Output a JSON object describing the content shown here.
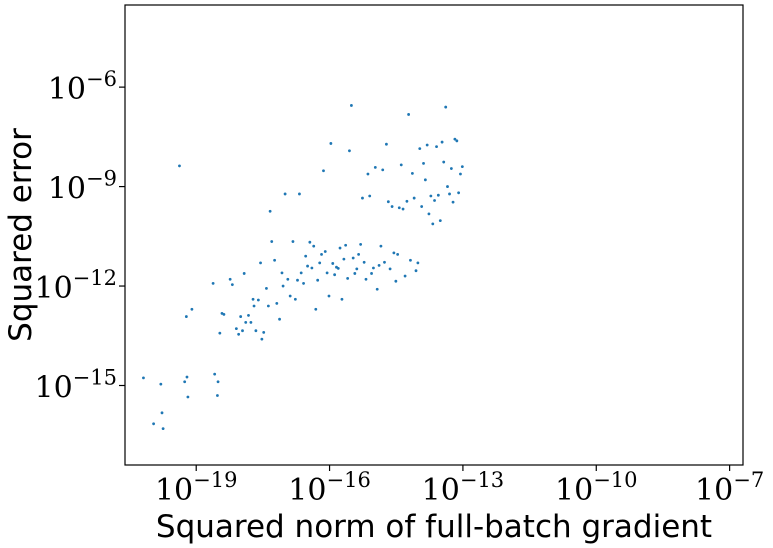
{
  "chart_data": {
    "type": "scatter",
    "title": "",
    "xlabel": "Squared norm of full-batch gradient",
    "ylabel": "Squared error",
    "x_scale": "log",
    "y_scale": "log",
    "xlim": [
      2.5e-21,
      2e-07
    ],
    "ylim": [
      4e-18,
      0.0003
    ],
    "x_ticks": [
      {
        "value": 1e-19,
        "base": "10",
        "exp": "−19"
      },
      {
        "value": 1e-16,
        "base": "10",
        "exp": "−16"
      },
      {
        "value": 1e-13,
        "base": "10",
        "exp": "−13"
      },
      {
        "value": 1e-10,
        "base": "10",
        "exp": "−10"
      },
      {
        "value": 1e-07,
        "base": "10",
        "exp": "−7"
      }
    ],
    "y_ticks": [
      {
        "value": 1e-15,
        "base": "10",
        "exp": "−15"
      },
      {
        "value": 1e-12,
        "base": "10",
        "exp": "−12"
      },
      {
        "value": 1e-09,
        "base": "10",
        "exp": "−9"
      },
      {
        "value": 1e-06,
        "base": "10",
        "exp": "−6"
      }
    ],
    "grid": false,
    "marker_color": "#1f77b4",
    "series": [
      {
        "points": [
          [
            6.5e-21,
            1.7e-15
          ],
          [
            1.1e-20,
            7e-17
          ],
          [
            1.6e-20,
            1.1e-15
          ],
          [
            1.8e-20,
            5e-17
          ],
          [
            1.7e-20,
            1.5e-16
          ],
          [
            4.2e-20,
            4.2e-09
          ],
          [
            6e-20,
            1.2e-13
          ],
          [
            8e-20,
            2e-13
          ],
          [
            5.5e-20,
            1.3e-15
          ],
          [
            6.2e-20,
            1.8e-15
          ],
          [
            6.5e-20,
            4.5e-16
          ],
          [
            2.4e-19,
            1.2e-12
          ],
          [
            2.6e-19,
            2.2e-15
          ],
          [
            3e-19,
            5e-16
          ],
          [
            3.1e-19,
            1.3e-15
          ],
          [
            3.4e-19,
            3.8e-14
          ],
          [
            3.8e-19,
            1.5e-13
          ],
          [
            4.2e-19,
            1.4e-13
          ],
          [
            5.8e-19,
            1.6e-12
          ],
          [
            6.5e-19,
            1.1e-12
          ],
          [
            8e-19,
            5.2e-14
          ],
          [
            9e-19,
            3.5e-14
          ],
          [
            1e-18,
            1.2e-13
          ],
          [
            1.1e-18,
            4.5e-14
          ],
          [
            1.3e-18,
            8e-14
          ],
          [
            1.2e-18,
            2.4e-12
          ],
          [
            1.5e-18,
            1.3e-13
          ],
          [
            1.7e-18,
            8e-14
          ],
          [
            1.9e-18,
            4e-13
          ],
          [
            2e-18,
            2.5e-13
          ],
          [
            2.2e-18,
            4.5e-14
          ],
          [
            2.5e-18,
            3.8e-13
          ],
          [
            2.8e-18,
            5e-12
          ],
          [
            3e-18,
            2.5e-14
          ],
          [
            3.3e-18,
            4e-14
          ],
          [
            3.8e-18,
            8.5e-13
          ],
          [
            4.2e-18,
            2.5e-13
          ],
          [
            4.6e-18,
            1.8e-10
          ],
          [
            5e-18,
            2.2e-11
          ],
          [
            5.8e-18,
            6e-12
          ],
          [
            6.5e-18,
            3e-13
          ],
          [
            7.5e-18,
            1e-13
          ],
          [
            8.5e-18,
            2.5e-12
          ],
          [
            9e-18,
            1e-12
          ],
          [
            1e-17,
            6e-10
          ],
          [
            1.15e-17,
            1.6e-12
          ],
          [
            1.3e-17,
            5e-13
          ],
          [
            1.5e-17,
            2.2e-11
          ],
          [
            1.7e-17,
            4e-13
          ],
          [
            1.9e-17,
            1.5e-12
          ],
          [
            2.1e-17,
            6e-10
          ],
          [
            2.3e-17,
            2.5e-12
          ],
          [
            2.6e-17,
            1.2e-12
          ],
          [
            2.9e-17,
            8e-12
          ],
          [
            3.2e-17,
            4e-12
          ],
          [
            3.6e-17,
            2.1e-11
          ],
          [
            4e-17,
            3.5e-12
          ],
          [
            4.4e-17,
            1.6e-11
          ],
          [
            4.9e-17,
            2e-13
          ],
          [
            5.4e-17,
            1.5e-12
          ],
          [
            6e-17,
            5e-12
          ],
          [
            6.6e-17,
            9e-12
          ],
          [
            7.3e-17,
            3e-09
          ],
          [
            8e-17,
            1.1e-11
          ],
          [
            8.8e-17,
            2.5e-12
          ],
          [
            9.7e-17,
            5e-13
          ],
          [
            1.07e-16,
            2e-08
          ],
          [
            1.18e-16,
            4.8e-12
          ],
          [
            1.3e-16,
            2.2e-12
          ],
          [
            1.43e-16,
            3.7e-12
          ],
          [
            1.57e-16,
            3.4e-12
          ],
          [
            1.72e-16,
            1.4e-11
          ],
          [
            1.9e-16,
            4e-13
          ],
          [
            2.1e-16,
            6.5e-12
          ],
          [
            2.3e-16,
            1.7e-11
          ],
          [
            2.55e-16,
            1.7e-12
          ],
          [
            2.8e-16,
            1.2e-08
          ],
          [
            3.1e-16,
            2.8e-07
          ],
          [
            3.4e-16,
            7e-12
          ],
          [
            3.7e-16,
            2.4e-12
          ],
          [
            4.1e-16,
            3.3e-12
          ],
          [
            4.5e-16,
            9e-12
          ],
          [
            5e-16,
            1.8e-11
          ],
          [
            5.5e-16,
            4.5e-10
          ],
          [
            6e-16,
            5.2e-12
          ],
          [
            6.6e-16,
            1.6e-12
          ],
          [
            7.3e-16,
            2.4e-09
          ],
          [
            8e-16,
            5.2e-10
          ],
          [
            8.8e-16,
            2.4e-12
          ],
          [
            9.7e-16,
            3.5e-12
          ],
          [
            1.07e-15,
            3.8e-09
          ],
          [
            1.18e-15,
            8e-13
          ],
          [
            1.3e-15,
            4.2e-12
          ],
          [
            1.43e-15,
            1.6e-11
          ],
          [
            1.57e-15,
            3.2e-09
          ],
          [
            1.72e-15,
            5.2e-12
          ],
          [
            1.9e-15,
            1.9e-08
          ],
          [
            2.1e-15,
            3.5e-10
          ],
          [
            2.3e-15,
            3.3e-12
          ],
          [
            2.55e-15,
            2.5e-10
          ],
          [
            2.8e-15,
            1e-11
          ],
          [
            3.1e-15,
            1.4e-12
          ],
          [
            3.4e-15,
            9e-12
          ],
          [
            3.7e-15,
            2.3e-10
          ],
          [
            4.1e-15,
            4.5e-09
          ],
          [
            4.5e-15,
            2.1e-10
          ],
          [
            5e-15,
            2e-12
          ],
          [
            5.5e-15,
            3.6e-10
          ],
          [
            6e-15,
            1.5e-07
          ],
          [
            6.6e-15,
            6e-12
          ],
          [
            7.3e-15,
            2.5e-09
          ],
          [
            8e-15,
            4.5e-10
          ],
          [
            8.8e-15,
            2.9e-12
          ],
          [
            9.7e-15,
            5e-12
          ],
          [
            1.07e-14,
            1.4e-08
          ],
          [
            1.18e-14,
            2.5e-10
          ],
          [
            1.3e-14,
            5e-09
          ],
          [
            1.43e-14,
            1.6e-09
          ],
          [
            1.57e-14,
            1.8e-08
          ],
          [
            1.72e-14,
            1.5e-10
          ],
          [
            1.9e-14,
            5.2e-10
          ],
          [
            2.1e-14,
            7.5e-11
          ],
          [
            2.3e-14,
            3.8e-10
          ],
          [
            2.55e-14,
            1.6e-08
          ],
          [
            2.8e-14,
            5.5e-10
          ],
          [
            3.1e-14,
            9.4e-11
          ],
          [
            3.4e-14,
            2.2e-08
          ],
          [
            3.7e-14,
            5.5e-09
          ],
          [
            4.1e-14,
            2.5e-07
          ],
          [
            4.5e-14,
            1e-09
          ],
          [
            5e-14,
            6e-10
          ],
          [
            5.5e-14,
            3.5e-09
          ],
          [
            6e-14,
            3.4e-10
          ],
          [
            6.6e-14,
            2.7e-08
          ],
          [
            7.3e-14,
            2.4e-08
          ],
          [
            8e-14,
            6.5e-10
          ],
          [
            8.8e-14,
            2.4e-09
          ],
          [
            9.7e-14,
            4e-09
          ]
        ]
      }
    ]
  }
}
